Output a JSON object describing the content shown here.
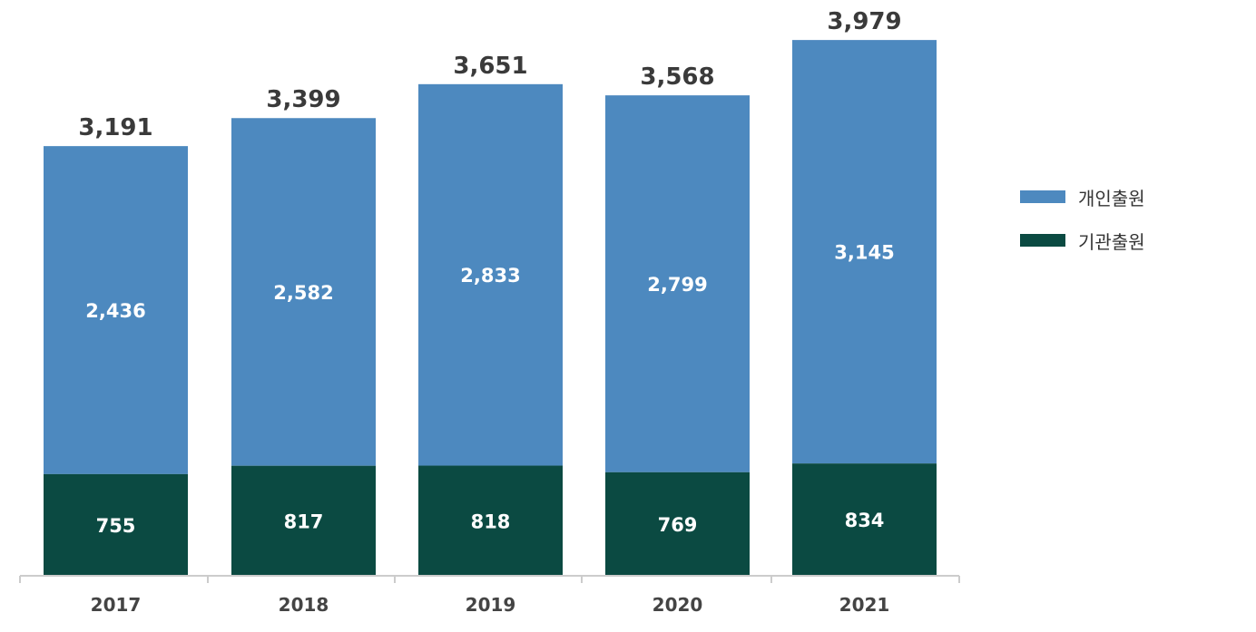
{
  "chart_data": {
    "type": "bar",
    "stacked": true,
    "categories": [
      "2017",
      "2018",
      "2019",
      "2020",
      "2021"
    ],
    "series": [
      {
        "name": "기관출원",
        "values": [
          755,
          817,
          818,
          769,
          834
        ],
        "color": "#0b4a42"
      },
      {
        "name": "개인출원",
        "values": [
          2436,
          2582,
          2833,
          2799,
          3145
        ],
        "color": "#4d89bf"
      }
    ],
    "totals": [
      "3,191",
      "3,399",
      "3,651",
      "3,568",
      "3,979"
    ],
    "segment_labels": {
      "기관출원": [
        "755",
        "817",
        "818",
        "769",
        "834"
      ],
      "개인출원": [
        "2,436",
        "2,582",
        "2,833",
        "2,799",
        "3,145"
      ]
    },
    "legend": [
      {
        "label": "개인출원",
        "color": "#4d89bf"
      },
      {
        "label": "기관출원",
        "color": "#0b4a42"
      }
    ],
    "legend_position": "right",
    "grid": false,
    "ylim": [
      0,
      4000
    ]
  }
}
